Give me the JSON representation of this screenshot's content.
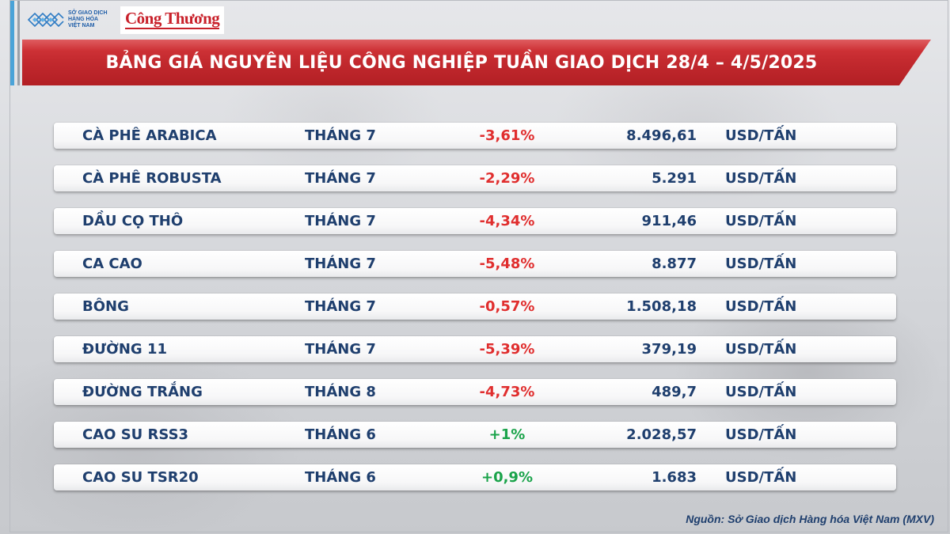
{
  "logos": {
    "mxv_lines": [
      "SỞ GIAO DỊCH",
      "HÀNG HÓA",
      "VIỆT NAM"
    ],
    "congthuong": "Công Thương"
  },
  "title": "BẢNG GIÁ NGUYÊN LIỆU CÔNG NGHIỆP TUẦN GIAO DỊCH 28/4 – 4/5/2025",
  "colors": {
    "banner": "#c42a2f",
    "text_dark": "#1f3f6e",
    "negative": "#e02e2e",
    "positive": "#1aa34a"
  },
  "rows": [
    {
      "name": "CÀ PHÊ ARABICA",
      "month": "THÁNG 7",
      "change": "-3,61%",
      "direction": "down",
      "price": "8.496,61",
      "unit": "USD/TẤN"
    },
    {
      "name": "CÀ PHÊ ROBUSTA",
      "month": "THÁNG 7",
      "change": "-2,29%",
      "direction": "down",
      "price": "5.291",
      "unit": "USD/TẤN"
    },
    {
      "name": "DẦU CỌ THÔ",
      "month": "THÁNG 7",
      "change": "-4,34%",
      "direction": "down",
      "price": "911,46",
      "unit": "USD/TẤN"
    },
    {
      "name": "CA CAO",
      "month": "THÁNG 7",
      "change": "-5,48%",
      "direction": "down",
      "price": "8.877",
      "unit": "USD/TẤN"
    },
    {
      "name": "BÔNG",
      "month": "THÁNG 7",
      "change": "-0,57%",
      "direction": "down",
      "price": "1.508,18",
      "unit": "USD/TẤN"
    },
    {
      "name": "ĐƯỜNG 11",
      "month": "THÁNG 7",
      "change": "-5,39%",
      "direction": "down",
      "price": "379,19",
      "unit": "USD/TẤN"
    },
    {
      "name": "ĐƯỜNG TRẮNG",
      "month": "THÁNG 8",
      "change": "-4,73%",
      "direction": "down",
      "price": "489,7",
      "unit": "USD/TẤN"
    },
    {
      "name": "CAO SU RSS3",
      "month": "THÁNG 6",
      "change": "+1%",
      "direction": "up",
      "price": "2.028,57",
      "unit": "USD/TẤN"
    },
    {
      "name": "CAO SU TSR20",
      "month": "THÁNG 6",
      "change": "+0,9%",
      "direction": "up",
      "price": "1.683",
      "unit": "USD/TẤN"
    }
  ],
  "source": "Nguồn: Sở Giao dịch Hàng hóa Việt Nam (MXV)"
}
